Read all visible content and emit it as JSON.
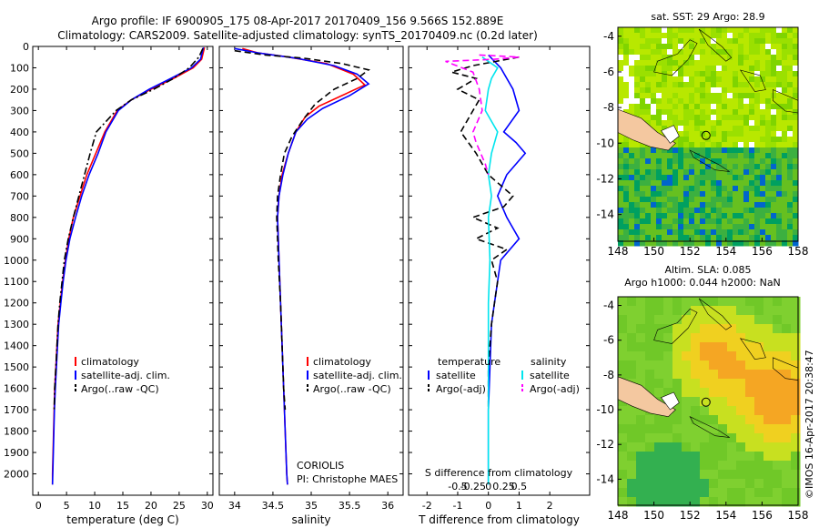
{
  "title_line1": "Argo profile: IF 6900905_175 08-Apr-2017 20170409_156 9.566S 152.889E",
  "title_line2": "Climatology: CARS2009. Satellite-adjusted climatology: synTS_20170409.nc (0.2d later)",
  "credit": "©IMOS 16-Apr-2017 20:38:47",
  "colors": {
    "climatology": "#ff0000",
    "satellite": "#0000ff",
    "argo": "#000000",
    "sat_salinity": "#00e5ee",
    "argo_salinity_adj": "#ff00ff"
  },
  "chart_data": [
    {
      "type": "line",
      "id": "temperature_profile",
      "xlabel": "temperature (deg C)",
      "xlim": [
        -1,
        31
      ],
      "ylim": [
        2100,
        0
      ],
      "xticks": [
        "0",
        "5",
        "10",
        "15",
        "20",
        "25",
        "30"
      ],
      "yticks": [
        "0",
        "100",
        "200",
        "300",
        "400",
        "500",
        "600",
        "700",
        "800",
        "900",
        "1000",
        "1100",
        "1200",
        "1300",
        "1400",
        "1500",
        "1600",
        "1700",
        "1800",
        "1900",
        "2000"
      ],
      "legend": [
        "climatology",
        "satellite-adj. clim.",
        "Argo(..raw -QC)"
      ],
      "series": [
        {
          "name": "climatology",
          "style": "solid",
          "color": "#ff0000",
          "points": [
            [
              29.5,
              5
            ],
            [
              29.0,
              60
            ],
            [
              27.5,
              100
            ],
            [
              24,
              150
            ],
            [
              20,
              200
            ],
            [
              16.5,
              250
            ],
            [
              14.0,
              300
            ],
            [
              11.8,
              400
            ],
            [
              10.2,
              500
            ],
            [
              8.6,
              600
            ],
            [
              7.4,
              700
            ],
            [
              6.2,
              800
            ],
            [
              5.4,
              900
            ],
            [
              4.8,
              1000
            ],
            [
              4.3,
              1100
            ],
            [
              3.9,
              1200
            ],
            [
              3.5,
              1300
            ],
            [
              3.3,
              1400
            ],
            [
              3.1,
              1500
            ],
            [
              2.9,
              1600
            ],
            [
              2.8,
              1700
            ],
            [
              2.7,
              1800
            ],
            [
              2.6,
              1900
            ],
            [
              2.5,
              2000
            ],
            [
              2.5,
              2050
            ]
          ]
        },
        {
          "name": "satellite-adj. clim.",
          "style": "solid",
          "color": "#0000ff",
          "points": [
            [
              29.3,
              5
            ],
            [
              28.8,
              60
            ],
            [
              27.2,
              100
            ],
            [
              23.5,
              150
            ],
            [
              19.7,
              200
            ],
            [
              16.5,
              250
            ],
            [
              14.2,
              300
            ],
            [
              12.0,
              400
            ],
            [
              10.6,
              500
            ],
            [
              9.0,
              600
            ],
            [
              7.7,
              700
            ],
            [
              6.6,
              800
            ],
            [
              5.6,
              900
            ],
            [
              4.9,
              1000
            ],
            [
              4.4,
              1100
            ],
            [
              4.0,
              1200
            ],
            [
              3.6,
              1300
            ],
            [
              3.4,
              1400
            ],
            [
              3.2,
              1500
            ],
            [
              3.0,
              1600
            ],
            [
              2.85,
              1700
            ],
            [
              2.75,
              1800
            ],
            [
              2.65,
              1900
            ],
            [
              2.55,
              2000
            ],
            [
              2.5,
              2050
            ]
          ]
        },
        {
          "name": "Argo(..raw -QC)",
          "style": "dashdot",
          "color": "#000000",
          "points": [
            [
              29.2,
              10
            ],
            [
              28.5,
              50
            ],
            [
              26.8,
              100
            ],
            [
              24,
              150
            ],
            [
              20.5,
              200
            ],
            [
              16.5,
              250
            ],
            [
              13.8,
              300
            ],
            [
              10.3,
              400
            ],
            [
              9.2,
              500
            ],
            [
              8.2,
              600
            ],
            [
              7.2,
              700
            ],
            [
              6.2,
              800
            ],
            [
              5.3,
              900
            ],
            [
              4.6,
              1000
            ],
            [
              4.2,
              1100
            ],
            [
              3.8,
              1200
            ],
            [
              3.5,
              1300
            ],
            [
              3.3,
              1400
            ],
            [
              3.1,
              1500
            ],
            [
              2.9,
              1600
            ],
            [
              2.8,
              1700
            ]
          ]
        }
      ]
    },
    {
      "type": "line",
      "id": "salinity_profile",
      "xlabel": "salinity",
      "xlim": [
        33.8,
        36.2
      ],
      "ylim": [
        2100,
        0
      ],
      "xticks": [
        "34",
        "34.5",
        "35",
        "35.5",
        "36"
      ],
      "legend": [
        "climatology",
        "satellite-adj. clim.",
        "Argo(..raw -QC)"
      ],
      "annotation": [
        "CORIOLIS",
        "PI: Christophe MAES"
      ],
      "series": [
        {
          "name": "climatology",
          "style": "solid",
          "color": "#ff0000",
          "points": [
            [
              34.1,
              10
            ],
            [
              34.3,
              30
            ],
            [
              34.7,
              50
            ],
            [
              35.2,
              80
            ],
            [
              35.55,
              130
            ],
            [
              35.7,
              180
            ],
            [
              35.4,
              230
            ],
            [
              35.1,
              280
            ],
            [
              34.92,
              330
            ],
            [
              34.8,
              400
            ],
            [
              34.7,
              500
            ],
            [
              34.62,
              600
            ],
            [
              34.58,
              700
            ],
            [
              34.56,
              800
            ],
            [
              34.57,
              900
            ],
            [
              34.58,
              1000
            ],
            [
              34.6,
              1200
            ],
            [
              34.62,
              1400
            ],
            [
              34.64,
              1600
            ],
            [
              34.66,
              1800
            ],
            [
              34.68,
              2000
            ],
            [
              34.69,
              2050
            ]
          ]
        },
        {
          "name": "satellite-adj. clim.",
          "style": "solid",
          "color": "#0000ff",
          "points": [
            [
              34.0,
              10
            ],
            [
              34.3,
              30
            ],
            [
              34.8,
              55
            ],
            [
              35.3,
              90
            ],
            [
              35.6,
              130
            ],
            [
              35.75,
              175
            ],
            [
              35.5,
              230
            ],
            [
              35.15,
              290
            ],
            [
              34.95,
              340
            ],
            [
              34.8,
              400
            ],
            [
              34.7,
              500
            ],
            [
              34.63,
              600
            ],
            [
              34.58,
              700
            ],
            [
              34.56,
              800
            ],
            [
              34.57,
              900
            ],
            [
              34.58,
              1000
            ],
            [
              34.6,
              1200
            ],
            [
              34.62,
              1400
            ],
            [
              34.64,
              1600
            ],
            [
              34.66,
              1800
            ],
            [
              34.68,
              2000
            ],
            [
              34.69,
              2050
            ]
          ]
        },
        {
          "name": "Argo(..raw -QC)",
          "style": "dashed",
          "color": "#000000",
          "points": [
            [
              34.0,
              20
            ],
            [
              34.4,
              40
            ],
            [
              34.9,
              55
            ],
            [
              35.4,
              80
            ],
            [
              35.75,
              110
            ],
            [
              35.6,
              150
            ],
            [
              35.3,
              200
            ],
            [
              35.05,
              270
            ],
            [
              34.9,
              340
            ],
            [
              34.75,
              420
            ],
            [
              34.65,
              500
            ],
            [
              34.6,
              600
            ],
            [
              34.56,
              700
            ],
            [
              34.55,
              800
            ],
            [
              34.56,
              900
            ],
            [
              34.57,
              1000
            ],
            [
              34.6,
              1200
            ],
            [
              34.62,
              1400
            ],
            [
              34.64,
              1600
            ],
            [
              34.66,
              1700
            ]
          ]
        }
      ]
    },
    {
      "type": "line",
      "id": "difference_profile",
      "xlabel": "T difference from climatology",
      "xlabel2": "S difference from climatology",
      "xlim": [
        -2.6,
        3.3
      ],
      "ylim": [
        2100,
        0
      ],
      "xticks": [
        "-2",
        "-1",
        "0",
        "1",
        "2"
      ],
      "xticks_s": [
        "-0.5",
        "-0.25",
        "0",
        "0.25",
        "0.5"
      ],
      "legend_left_title": "temperature",
      "legend_right_title": "salinity",
      "legend": [
        "satellite",
        "Argo(-adj)",
        "satellite",
        "Argo(-adj)"
      ],
      "series": [
        {
          "name": "temperature satellite",
          "style": "solid",
          "color": "#0000ff",
          "points": [
            [
              0,
              40
            ],
            [
              0.4,
              100
            ],
            [
              0.8,
              200
            ],
            [
              1.0,
              300
            ],
            [
              0.5,
              400
            ],
            [
              0.9,
              450
            ],
            [
              1.2,
              500
            ],
            [
              0.6,
              600
            ],
            [
              0.3,
              700
            ],
            [
              0.6,
              800
            ],
            [
              1.0,
              900
            ],
            [
              0.4,
              1000
            ],
            [
              0.3,
              1100
            ],
            [
              0.2,
              1200
            ],
            [
              0.1,
              1300
            ],
            [
              0.05,
              1500
            ],
            [
              0,
              1700
            ],
            [
              0,
              2050
            ]
          ]
        },
        {
          "name": "temperature Argo(-adj)",
          "style": "dashed",
          "color": "#000000",
          "points": [
            [
              1.0,
              50
            ],
            [
              -0.5,
              90
            ],
            [
              -1.2,
              120
            ],
            [
              -0.4,
              150
            ],
            [
              -1.0,
              200
            ],
            [
              -0.3,
              250
            ],
            [
              -0.5,
              300
            ],
            [
              -0.9,
              400
            ],
            [
              -0.4,
              500
            ],
            [
              0,
              600
            ],
            [
              0.8,
              700
            ],
            [
              0.5,
              750
            ],
            [
              -0.5,
              800
            ],
            [
              0.3,
              850
            ],
            [
              -0.4,
              900
            ],
            [
              0.6,
              950
            ],
            [
              0.1,
              1000
            ],
            [
              0.3,
              1100
            ],
            [
              0.2,
              1200
            ],
            [
              0.1,
              1300
            ],
            [
              0,
              1500
            ],
            [
              0,
              1700
            ]
          ]
        },
        {
          "name": "salinity satellite",
          "style": "solid",
          "color": "#00e5ee",
          "points": [
            [
              -0.2,
              50
            ],
            [
              0.3,
              100
            ],
            [
              0.1,
              150
            ],
            [
              0.0,
              200
            ],
            [
              -0.1,
              300
            ],
            [
              0.3,
              400
            ],
            [
              0.1,
              500
            ],
            [
              0.0,
              600
            ],
            [
              0.1,
              700
            ],
            [
              0.0,
              800
            ],
            [
              0.05,
              1000
            ],
            [
              0.0,
              1200
            ],
            [
              0.0,
              1500
            ],
            [
              0.0,
              2050
            ]
          ]
        },
        {
          "name": "salinity Argo(-adj)",
          "style": "dashed",
          "color": "#ff00ff",
          "points": [
            [
              -0.3,
              40
            ],
            [
              1.0,
              50
            ],
            [
              0.2,
              60
            ],
            [
              -1.4,
              70
            ],
            [
              -0.5,
              120
            ],
            [
              -0.3,
              200
            ],
            [
              -0.2,
              300
            ],
            [
              -0.5,
              400
            ],
            [
              -0.4,
              450
            ],
            [
              -0.1,
              550
            ],
            [
              0.0,
              600
            ]
          ]
        }
      ]
    },
    {
      "type": "heatmap",
      "id": "sst_map",
      "title": "sat. SST: 29 Argo: 28.9",
      "xlim": [
        148,
        158
      ],
      "ylim": [
        -15.5,
        -3.5
      ],
      "xticks": [
        "148",
        "150",
        "152",
        "154",
        "156",
        "158"
      ],
      "yticks": [
        "-4",
        "-6",
        "-8",
        "-10",
        "-12",
        "-14"
      ],
      "argo_position": [
        152.889,
        -9.566
      ]
    },
    {
      "type": "heatmap",
      "id": "sla_map",
      "title": "Altim. SLA: 0.085",
      "title2": "Argo h1000: 0.044 h2000: NaN",
      "xlim": [
        148,
        158
      ],
      "ylim": [
        -15.5,
        -3.5
      ],
      "xticks": [
        "148",
        "150",
        "152",
        "154",
        "156",
        "158"
      ],
      "yticks": [
        "-4",
        "-6",
        "-8",
        "-10",
        "-12",
        "-14"
      ],
      "argo_position": [
        152.889,
        -9.566
      ]
    }
  ]
}
